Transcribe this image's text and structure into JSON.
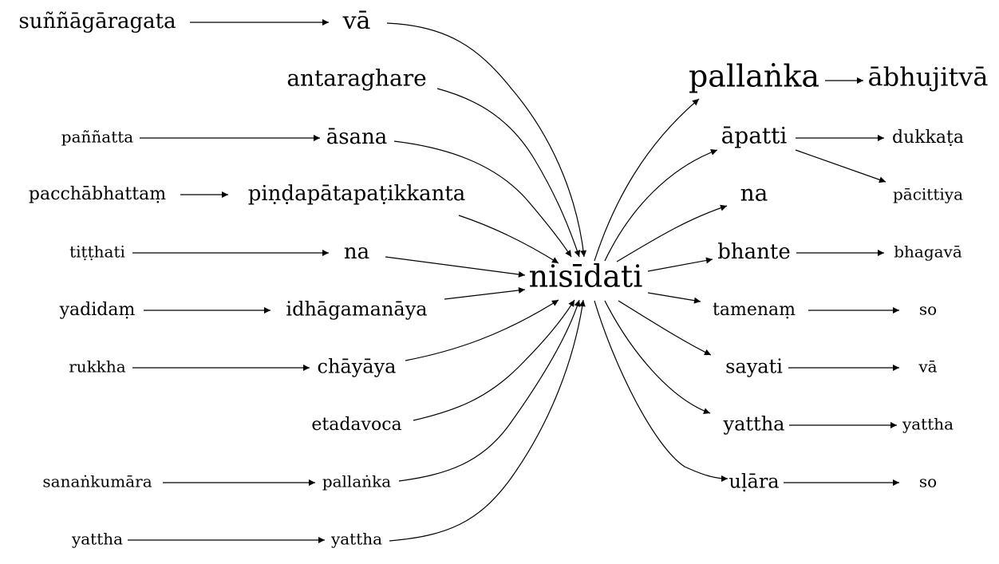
{
  "graph": {
    "center": "nisīdati",
    "nodes": {
      "n_suññāgāragata": "suññāgāragata",
      "n_vā_top": "vā",
      "n_antaraghare": "antaraghare",
      "n_paññatta": "paññatta",
      "n_āsana": "āsana",
      "n_pacchābhattaṃ": "pacchābhattaṃ",
      "n_piṇḍapāta": "piṇḍapātapaṭikkanta",
      "n_tiṭṭhati": "tiṭṭhati",
      "n_na_left": "na",
      "n_yadidaṃ": "yadidaṃ",
      "n_idhāgamanāya": "idhāgamanāya",
      "n_rukkha": "rukkha",
      "n_chāyāya": "chāyāya",
      "n_etadavoca": "etadavoca",
      "n_sanaṅkumāra": "sanaṅkumāra",
      "n_pallaṅka_left": "pallaṅka",
      "n_yattha_far_left": "yattha",
      "n_yattha_left": "yattha",
      "n_center": "nisīdati",
      "n_pallaṅka_right": "pallaṅka",
      "n_ābhujitvā": "ābhujitvā",
      "n_āpatti": "āpatti",
      "n_dukkaṭa": "dukkaṭa",
      "n_pācittiya": "pācittiya",
      "n_na_right": "na",
      "n_bhante": "bhante",
      "n_bhagavā": "bhagavā",
      "n_tamenaṃ": "tamenaṃ",
      "n_so_1": "so",
      "n_sayati": "sayati",
      "n_vā_right": "vā",
      "n_yattha_right": "yattha",
      "n_yattha_far_right": "yattha",
      "n_uḷāra": "uḷāra",
      "n_so_2": "so"
    },
    "edges": [
      [
        "n_suññāgāragata",
        "n_vā_top"
      ],
      [
        "n_vā_top",
        "n_center"
      ],
      [
        "n_antaraghare",
        "n_center"
      ],
      [
        "n_paññatta",
        "n_āsana"
      ],
      [
        "n_āsana",
        "n_center"
      ],
      [
        "n_pacchābhattaṃ",
        "n_piṇḍapāta"
      ],
      [
        "n_piṇḍapāta",
        "n_center"
      ],
      [
        "n_tiṭṭhati",
        "n_na_left"
      ],
      [
        "n_na_left",
        "n_center"
      ],
      [
        "n_yadidaṃ",
        "n_idhāgamanāya"
      ],
      [
        "n_idhāgamanāya",
        "n_center"
      ],
      [
        "n_rukkha",
        "n_chāyāya"
      ],
      [
        "n_chāyāya",
        "n_center"
      ],
      [
        "n_etadavoca",
        "n_center"
      ],
      [
        "n_sanaṅkumāra",
        "n_pallaṅka_left"
      ],
      [
        "n_pallaṅka_left",
        "n_center"
      ],
      [
        "n_yattha_far_left",
        "n_yattha_left"
      ],
      [
        "n_yattha_left",
        "n_center"
      ],
      [
        "n_center",
        "n_pallaṅka_right"
      ],
      [
        "n_pallaṅka_right",
        "n_ābhujitvā"
      ],
      [
        "n_center",
        "n_āpatti"
      ],
      [
        "n_āpatti",
        "n_dukkaṭa"
      ],
      [
        "n_āpatti",
        "n_pācittiya"
      ],
      [
        "n_center",
        "n_na_right"
      ],
      [
        "n_center",
        "n_bhante"
      ],
      [
        "n_bhante",
        "n_bhagavā"
      ],
      [
        "n_center",
        "n_tamenaṃ"
      ],
      [
        "n_tamenaṃ",
        "n_so_1"
      ],
      [
        "n_center",
        "n_sayati"
      ],
      [
        "n_sayati",
        "n_vā_right"
      ],
      [
        "n_center",
        "n_yattha_right"
      ],
      [
        "n_yattha_right",
        "n_yattha_far_right"
      ],
      [
        "n_center",
        "n_uḷāra"
      ],
      [
        "n_uḷāra",
        "n_so_2"
      ]
    ]
  }
}
